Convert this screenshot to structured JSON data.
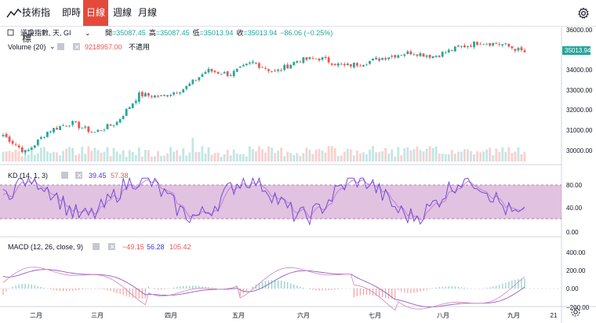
{
  "toolbar": {
    "indicators_label": "技術指標",
    "intervals": [
      "即時",
      "日線",
      "週線",
      "月線"
    ],
    "active_interval": "日線",
    "settings_icon": "gear-icon",
    "indicators_icon": "chart-wave-icon"
  },
  "legend": {
    "symbol": "道瓊指數, 天, GI",
    "open_label": "開",
    "open": "=35087.45",
    "high_label": "高",
    "high": "=35087.45",
    "low_label": "低",
    "low": "=35013.94",
    "close_label": "收",
    "close": "=35013.94",
    "change": "−86.06 (−0.25%)",
    "volume_label": "Volume (20)",
    "volume_value": "9218957.00",
    "volume_extra": "不適用",
    "kd_label": "KD (14, 1, 3)",
    "kd_k": "39.45",
    "kd_d": "57.38",
    "macd_label": "MACD (12, 26, close, 9)",
    "macd_hist": "−49.15",
    "macd_line": "56.28",
    "macd_signal": "105.42"
  },
  "colors": {
    "up": "#26a69a",
    "down": "#ef5350",
    "price_tag": "#26a69a",
    "kd_band": "#c88fc9",
    "k_line": "#6b3fd4",
    "d_line": "#b97bd6",
    "macd_line": "#d68fc4",
    "signal_line": "#8e5fc2",
    "active_tab": "#e44a3c"
  },
  "chart_data": [
    {
      "type": "candlestick",
      "title": "道瓊指數",
      "y_ticks": [
        30000,
        31000,
        32000,
        33000,
        34000,
        35000,
        36000
      ],
      "y_tick_labels": [
        "30000.00",
        "31000.00",
        "32000.00",
        "33000.00",
        "34000.00",
        "35000.00",
        "36000.00"
      ],
      "last_price": "35013.94",
      "x_tick_labels": [
        "二月",
        "三月",
        "四月",
        "五月",
        "六月",
        "七月",
        "八月",
        "九月",
        "21"
      ],
      "close_points": [
        {
          "month": "1月中",
          "close": 30900
        },
        {
          "month": "1月底",
          "close": 30000
        },
        {
          "month": "二月",
          "close": 31100
        },
        {
          "month": "2月中",
          "close": 31500
        },
        {
          "month": "2月底",
          "close": 31000
        },
        {
          "month": "三月",
          "close": 31500
        },
        {
          "month": "3月中",
          "close": 32900
        },
        {
          "month": "3月底",
          "close": 32800
        },
        {
          "month": "四月",
          "close": 33200
        },
        {
          "month": "4月中",
          "close": 34100
        },
        {
          "month": "4月底",
          "close": 33900
        },
        {
          "month": "五月",
          "close": 34500
        },
        {
          "month": "5月中",
          "close": 34000
        },
        {
          "month": "5月底",
          "close": 34600
        },
        {
          "month": "六月",
          "close": 34700
        },
        {
          "month": "6月中",
          "close": 34300
        },
        {
          "month": "6月底",
          "close": 34500
        },
        {
          "month": "七月",
          "close": 34800
        },
        {
          "month": "7月中",
          "close": 35000
        },
        {
          "month": "7月底",
          "close": 34800
        },
        {
          "month": "八月",
          "close": 35200
        },
        {
          "month": "8月中",
          "close": 35500
        },
        {
          "month": "8月底",
          "close": 35400
        },
        {
          "month": "九月",
          "close": 35000
        }
      ]
    },
    {
      "type": "bar",
      "title": "Volume (20)",
      "last_value": 9218957.0
    },
    {
      "type": "line",
      "title": "KD (14, 1, 3)",
      "y_ticks": [
        0,
        40,
        80
      ],
      "y_tick_labels": [
        "0.00",
        "40.00",
        "80.00"
      ],
      "band": [
        20,
        80
      ],
      "series": [
        {
          "name": "K",
          "last": 39.45
        },
        {
          "name": "D",
          "last": 57.38
        }
      ]
    },
    {
      "type": "line",
      "title": "MACD (12, 26, close, 9)",
      "y_ticks": [
        -200,
        0,
        200,
        400
      ],
      "y_tick_labels": [
        "−200.00",
        "0.00",
        "200.00",
        "400.00"
      ],
      "series": [
        {
          "name": "Histogram",
          "last": -49.15
        },
        {
          "name": "MACD",
          "last": 56.28
        },
        {
          "name": "Signal",
          "last": 105.42
        }
      ]
    }
  ]
}
